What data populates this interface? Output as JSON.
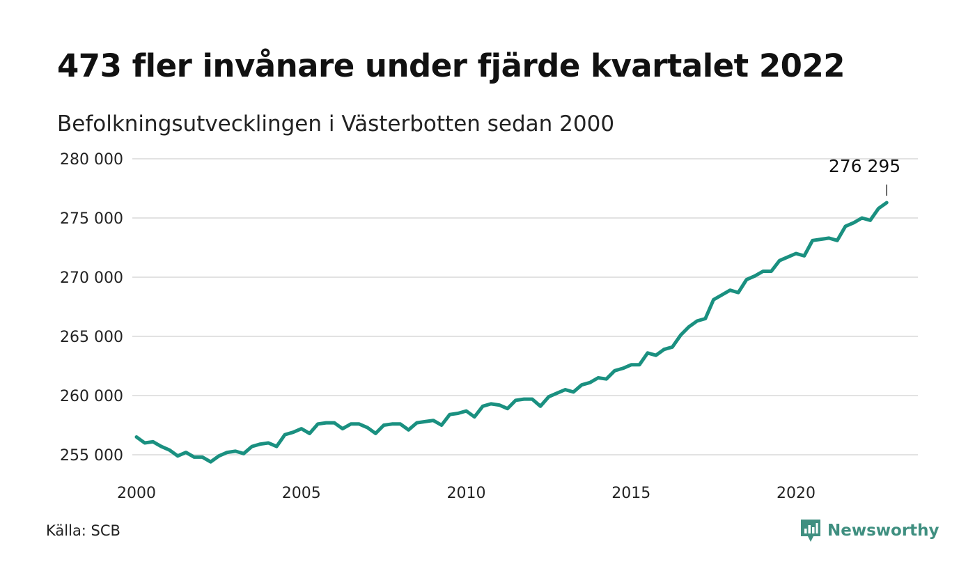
{
  "title": "473 fler invånare under fjärde kvartalet 2022",
  "subtitle": "Befolkningsutvecklingen i Västerbotten sedan 2000",
  "source": "Källa: SCB",
  "brand": {
    "name": "Newsworthy",
    "color": "#3f8f80",
    "icon": "chart-logo-icon"
  },
  "colors": {
    "line": "#1a9080",
    "grid": "#e2e2e2",
    "text": "#222222"
  },
  "chart_data": {
    "type": "line",
    "title": "473 fler invånare under fjärde kvartalet 2022",
    "subtitle": "Befolkningsutvecklingen i Västerbotten sedan 2000",
    "xlabel": "",
    "ylabel": "",
    "xlim": [
      2000,
      2023.9
    ],
    "ylim": [
      254000,
      280000
    ],
    "xticks": [
      2000,
      2005,
      2010,
      2015,
      2020
    ],
    "xtick_labels": [
      "2000",
      "2005",
      "2010",
      "2015",
      "2020"
    ],
    "yticks": [
      255000,
      260000,
      265000,
      270000,
      275000,
      280000
    ],
    "ytick_labels": [
      "255 000",
      "260 000",
      "265 000",
      "270 000",
      "275 000",
      "280 000"
    ],
    "grid": "horizontal",
    "end_label": "276 295",
    "series": [
      {
        "x": [
          2000.0,
          2000.25,
          2000.5,
          2000.75,
          2001.0,
          2001.25,
          2001.5,
          2001.75,
          2002.0,
          2002.25,
          2002.5,
          2002.75,
          2003.0,
          2003.25,
          2003.5,
          2003.75,
          2004.0,
          2004.25,
          2004.5,
          2004.75,
          2005.0,
          2005.25,
          2005.5,
          2005.75,
          2006.0,
          2006.25,
          2006.5,
          2006.75,
          2007.0,
          2007.25,
          2007.5,
          2007.75,
          2008.0,
          2008.25,
          2008.5,
          2008.75,
          2009.0,
          2009.25,
          2009.5,
          2009.75,
          2010.0,
          2010.25,
          2010.5,
          2010.75,
          2011.0,
          2011.25,
          2011.5,
          2011.75,
          2012.0,
          2012.25,
          2012.5,
          2012.75,
          2013.0,
          2013.25,
          2013.5,
          2013.75,
          2014.0,
          2014.25,
          2014.5,
          2014.75,
          2015.0,
          2015.25,
          2015.5,
          2015.75,
          2016.0,
          2016.25,
          2016.5,
          2016.75,
          2017.0,
          2017.25,
          2017.5,
          2017.75,
          2018.0,
          2018.25,
          2018.5,
          2018.75,
          2019.0,
          2019.25,
          2019.5,
          2019.75,
          2020.0,
          2020.25,
          2020.5,
          2020.75,
          2021.0,
          2021.25,
          2021.5,
          2021.75,
          2022.0,
          2022.25,
          2022.5,
          2022.75
        ],
        "values": [
          256500,
          256000,
          256100,
          255700,
          255400,
          254900,
          255200,
          254800,
          254800,
          254400,
          254900,
          255200,
          255300,
          255100,
          255700,
          255900,
          256000,
          255700,
          256700,
          256900,
          257200,
          256800,
          257600,
          257700,
          257700,
          257200,
          257600,
          257600,
          257300,
          256800,
          257500,
          257600,
          257600,
          257100,
          257700,
          257800,
          257900,
          257500,
          258400,
          258500,
          258700,
          258200,
          259100,
          259300,
          259200,
          258900,
          259600,
          259700,
          259700,
          259100,
          259900,
          260200,
          260500,
          260300,
          260900,
          261100,
          261500,
          261400,
          262100,
          262300,
          262600,
          262600,
          263600,
          263400,
          263900,
          264100,
          265100,
          265800,
          266300,
          266500,
          268100,
          268500,
          268900,
          268700,
          269800,
          270100,
          270500,
          270500,
          271400,
          271700,
          272000,
          271800,
          273100,
          273200,
          273300,
          273100,
          274300,
          274600,
          275000,
          274800,
          275800,
          276295
        ]
      }
    ]
  }
}
